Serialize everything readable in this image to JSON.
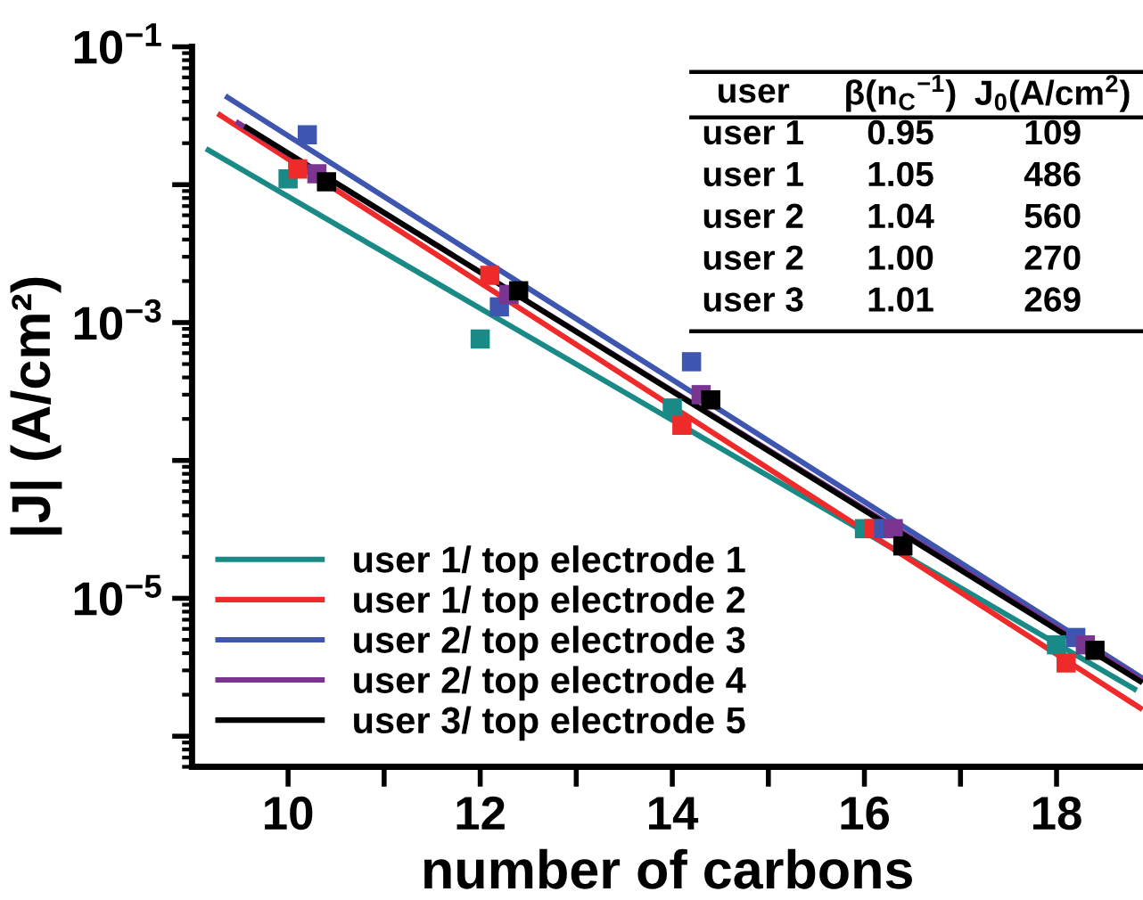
{
  "chart_data": {
    "type": "scatter",
    "xlabel": "number of carbons",
    "ylabel": "|J| (A/cm²)",
    "log": "y",
    "xlim": [
      9,
      18.9
    ],
    "ylim": [
      6e-07,
      0.1
    ],
    "xticks": [
      10,
      {
        "value": 11,
        "label": null
      },
      12,
      {
        "value": 13,
        "label": null
      },
      14,
      {
        "value": 15,
        "label": null
      },
      16,
      {
        "value": 17,
        "label": null
      },
      18
    ],
    "yticks": [
      {
        "value": 0.1,
        "label": "10$^{−1}$"
      },
      {
        "value": 0.01,
        "label": null
      },
      {
        "value": 0.001,
        "label": "10$^{−3}$"
      },
      {
        "value": 0.0001,
        "label": null
      },
      {
        "value": 1e-05,
        "label": "10$^{−5}$"
      },
      {
        "value": 1e-06,
        "label": null
      }
    ],
    "grid": false,
    "legend": "bottom left",
    "series": [
      {
        "marker": "square",
        "color": "#1a8a86",
        "x": [
          10.0,
          12.0,
          14.0,
          16.0,
          18.0
        ],
        "values": [
          0.011,
          0.00076,
          0.00024,
          3.2e-05,
          4.6e-06
        ]
      },
      {
        "marker": "square",
        "color": "#ee2a2a",
        "x": [
          10.1,
          12.1,
          14.1,
          16.1,
          18.1
        ],
        "values": [
          0.013,
          0.0022,
          0.00018,
          3.2e-05,
          3.4e-06
        ]
      },
      {
        "marker": "square",
        "color": "#3f56b0",
        "x": [
          10.2,
          12.2,
          14.2,
          16.2,
          18.2
        ],
        "values": [
          0.023,
          0.0013,
          0.00052,
          3.2e-05,
          5.2e-06
        ]
      },
      {
        "marker": "square",
        "color": "#7a3590",
        "x": [
          10.3,
          12.3,
          14.3,
          16.3,
          18.3
        ],
        "values": [
          0.012,
          0.0016,
          0.0003,
          3.2e-05,
          4.6e-06
        ]
      },
      {
        "marker": "square",
        "color": "#000000",
        "x": [
          10.4,
          12.4,
          14.4,
          16.4,
          18.4
        ],
        "values": [
          0.0105,
          0.0017,
          0.000275,
          2.4e-05,
          4.2e-06
        ]
      },
      {
        "type": "line",
        "marker": "none",
        "line_style": "solid",
        "name": "user 1/ top electrode 1",
        "color": "#1a8a86",
        "x": [
          9.17,
          18.81
        ],
        "values": [
          0.0178,
          2.2e-06
        ]
      },
      {
        "type": "line",
        "marker": "none",
        "line_style": "solid",
        "name": "user 1/ top electrode 2",
        "color": "#ee2a2a",
        "x": [
          9.29,
          18.87
        ],
        "values": [
          0.032,
          1.6e-06
        ]
      },
      {
        "type": "line",
        "marker": "none",
        "line_style": "solid",
        "name": "user 2/ top electrode 3",
        "color": "#3f56b0",
        "x": [
          9.37,
          18.87
        ],
        "values": [
          0.043,
          2.7e-06
        ]
      },
      {
        "type": "line",
        "marker": "none",
        "line_style": "solid",
        "name": "user 2/ top electrode 4",
        "color": "#7a3590",
        "x": [
          9.48,
          18.87
        ],
        "values": [
          0.028,
          2.6e-06
        ]
      },
      {
        "type": "line",
        "marker": "none",
        "line_style": "solid",
        "name": "user 3/ top electrode 5",
        "color": "#000000",
        "x": [
          9.57,
          18.87
        ],
        "values": [
          0.026,
          2.5e-06
        ]
      }
    ],
    "annotations": [
      "user",
      "β(n$_{C}$$^{−1}$)",
      "J$_{0}$(A/cm$^{2}$)",
      "user 1",
      "0.95",
      "109",
      "user 1",
      "1.05",
      "486",
      "user 2",
      "1.04",
      "560",
      "user 2",
      "1.00",
      "270",
      "user 3",
      "1.01",
      "269"
    ]
  }
}
